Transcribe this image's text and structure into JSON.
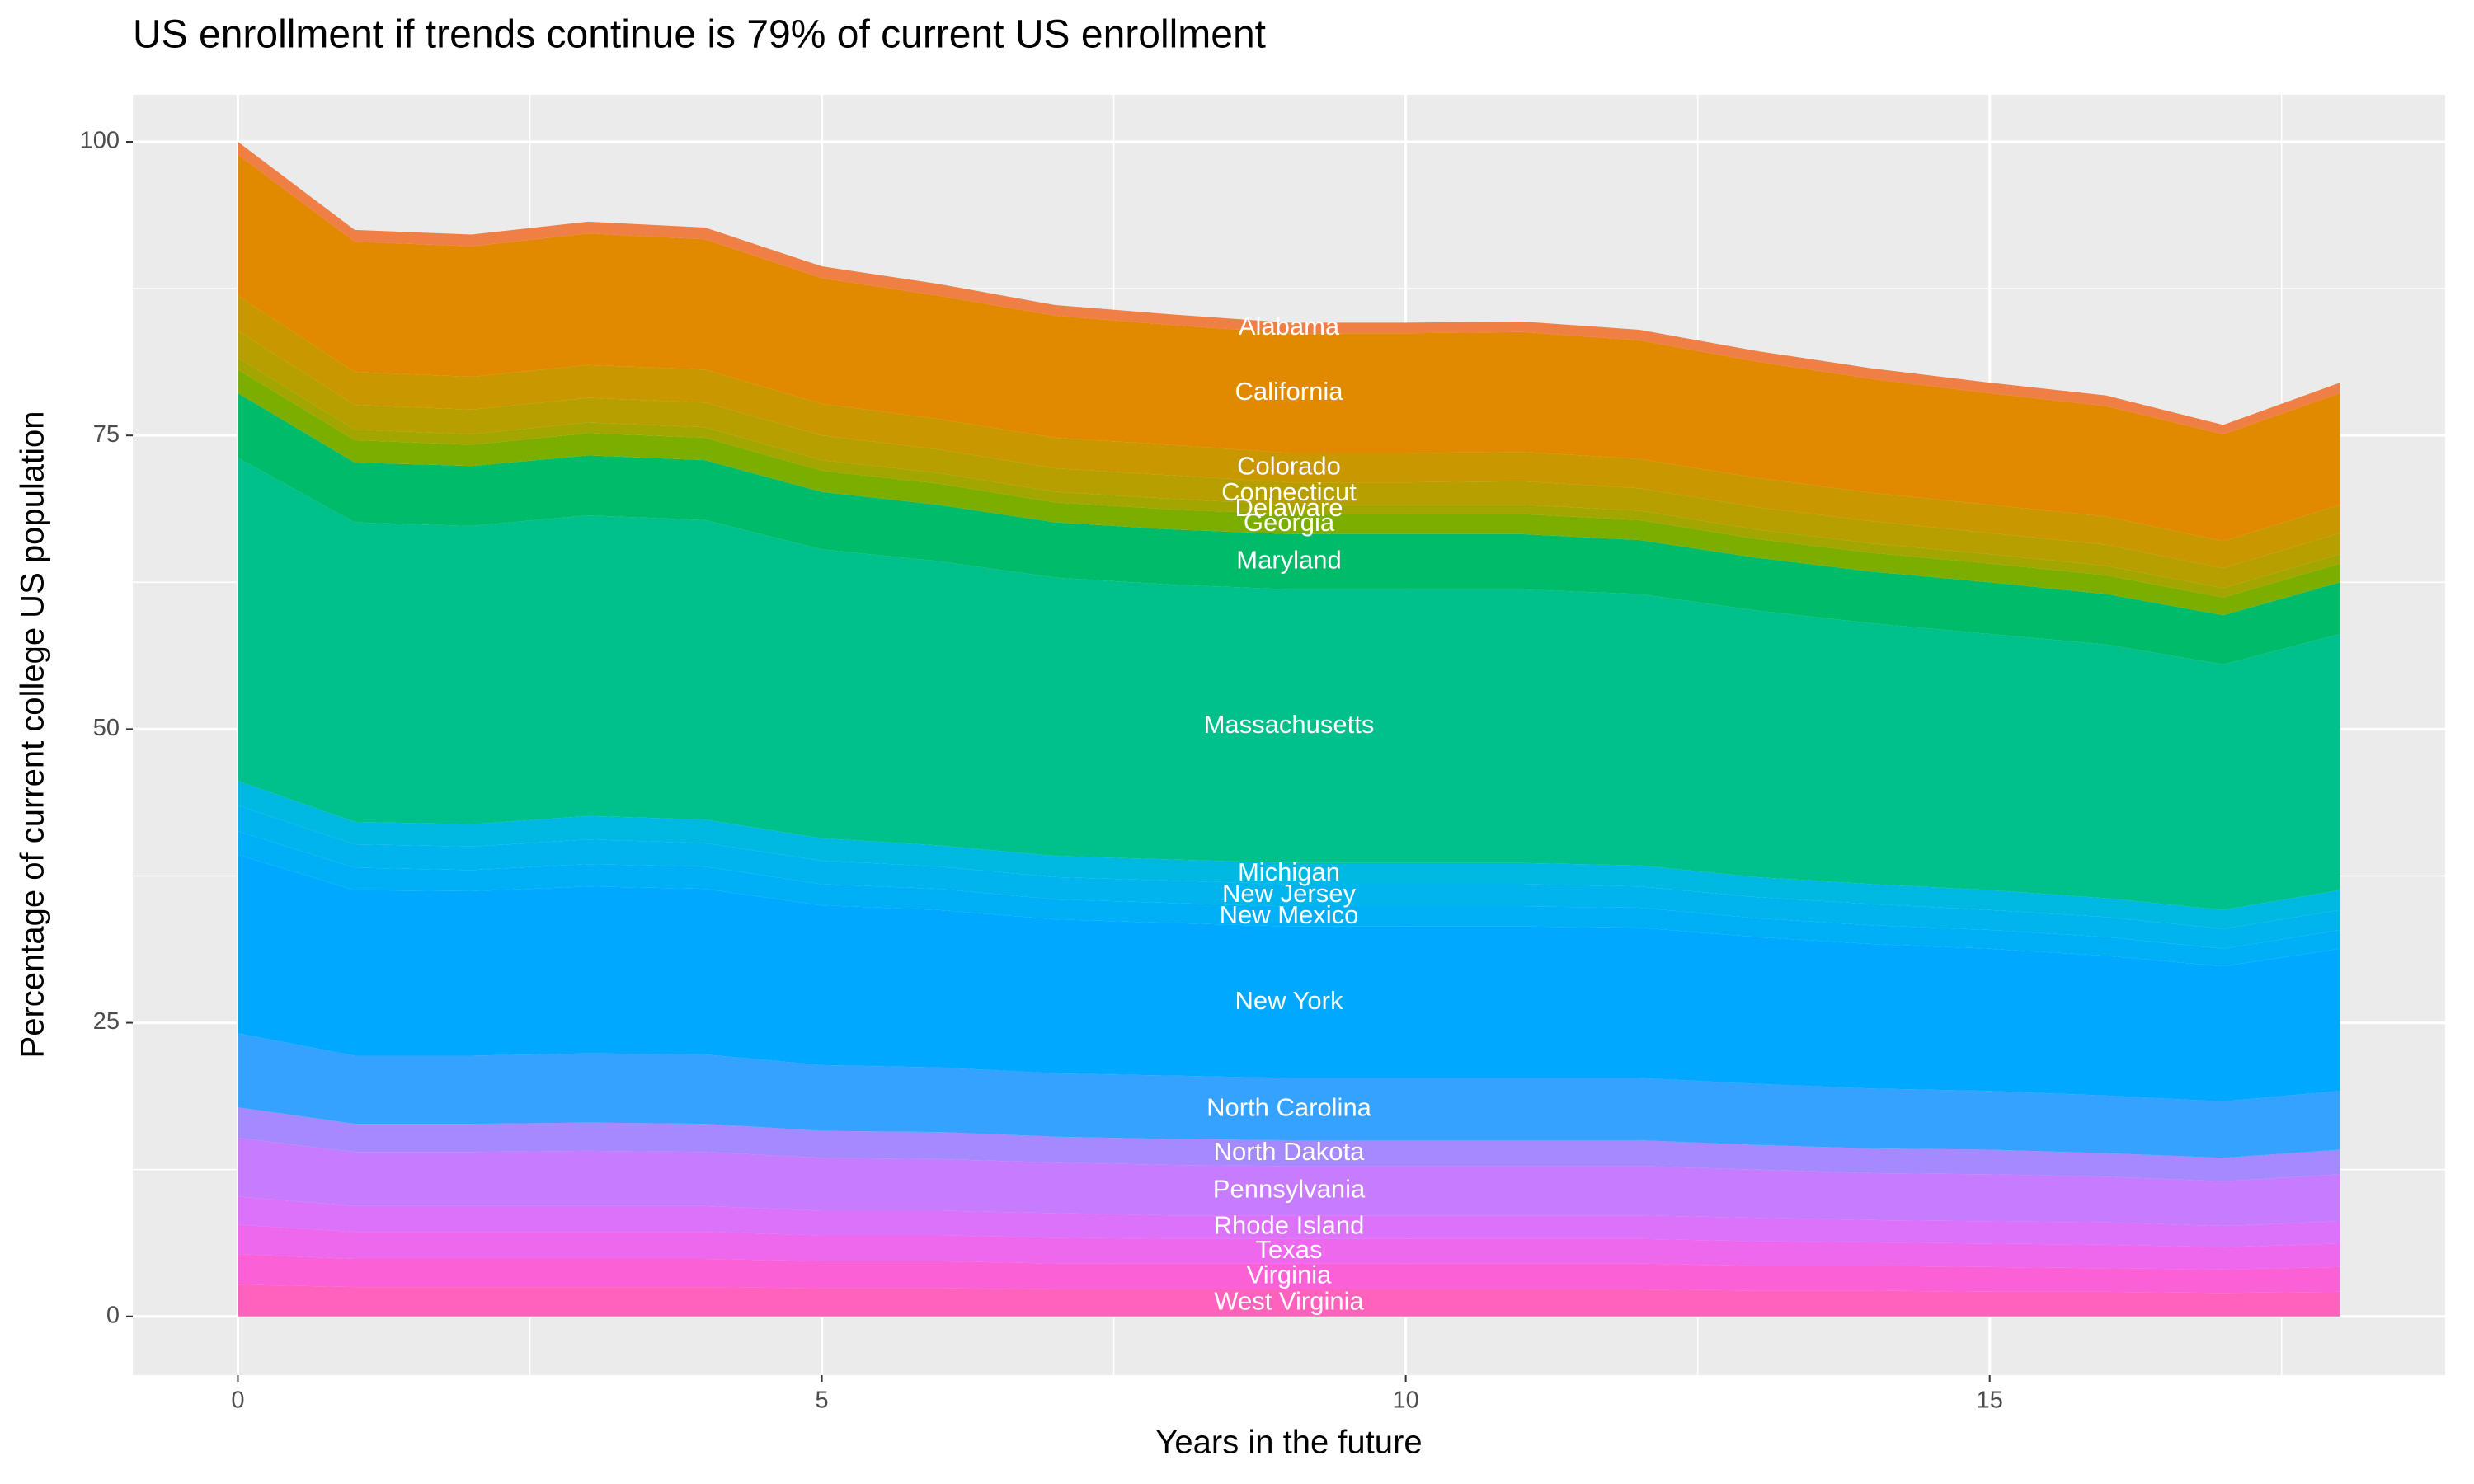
{
  "chart_data": {
    "type": "stacked_area",
    "title": "US enrollment if trends continue is 79% of current US enrollment",
    "x_label": "Years in the future",
    "y_label": "Percentage of current college US population",
    "x": [
      0,
      1,
      2,
      3,
      4,
      5,
      6,
      7,
      8,
      9,
      10,
      11,
      12,
      13,
      14,
      15,
      16,
      17,
      18
    ],
    "xlim": [
      -0.9,
      18.9
    ],
    "xticks": [
      0,
      5,
      10,
      15
    ],
    "x_minor_ticks": [
      2.5,
      7.5,
      12.5,
      17.5
    ],
    "ylim": [
      -5,
      104
    ],
    "yticks": [
      0,
      25,
      50,
      75,
      100
    ],
    "y_minor_ticks": [
      12.5,
      37.5,
      62.5,
      87.5
    ],
    "grid": true,
    "label_x": 9,
    "series": [
      {
        "name": "West Virginia",
        "color": "#ff62bc",
        "values": [
          2.7,
          2.5,
          2.5,
          2.5,
          2.5,
          2.4,
          2.4,
          2.3,
          2.3,
          2.3,
          2.3,
          2.3,
          2.3,
          2.2,
          2.2,
          2.1,
          2.1,
          2.0,
          2.1
        ]
      },
      {
        "name": "Virginia",
        "color": "#fb61d7",
        "values": [
          2.6,
          2.4,
          2.4,
          2.4,
          2.4,
          2.3,
          2.3,
          2.2,
          2.2,
          2.2,
          2.2,
          2.2,
          2.2,
          2.1,
          2.1,
          2.1,
          2.0,
          2.0,
          2.1
        ]
      },
      {
        "name": "Texas",
        "color": "#ed68ed",
        "values": [
          2.5,
          2.3,
          2.3,
          2.3,
          2.3,
          2.2,
          2.2,
          2.2,
          2.1,
          2.1,
          2.1,
          2.1,
          2.1,
          2.1,
          2.0,
          2.0,
          2.0,
          1.9,
          2.0
        ]
      },
      {
        "name": "Rhode Island",
        "color": "#dc71fa",
        "values": [
          2.4,
          2.2,
          2.2,
          2.2,
          2.2,
          2.1,
          2.1,
          2.1,
          2.0,
          2.0,
          2.0,
          2.0,
          2.0,
          2.0,
          1.9,
          1.9,
          1.9,
          1.8,
          1.9
        ]
      },
      {
        "name": "Pennsylvania",
        "color": "#c77cff",
        "values": [
          5.0,
          4.6,
          4.6,
          4.7,
          4.6,
          4.5,
          4.4,
          4.3,
          4.3,
          4.2,
          4.2,
          4.2,
          4.2,
          4.1,
          4.0,
          4.0,
          3.9,
          3.8,
          4.0
        ]
      },
      {
        "name": "North Dakota",
        "color": "#a58aff",
        "values": [
          2.6,
          2.4,
          2.4,
          2.4,
          2.4,
          2.3,
          2.3,
          2.2,
          2.2,
          2.2,
          2.2,
          2.2,
          2.2,
          2.1,
          2.1,
          2.1,
          2.0,
          2.0,
          2.1
        ]
      },
      {
        "name": "North Carolina",
        "color": "#35a2ff",
        "values": [
          6.3,
          5.8,
          5.8,
          5.9,
          5.9,
          5.6,
          5.5,
          5.4,
          5.4,
          5.3,
          5.3,
          5.3,
          5.3,
          5.2,
          5.1,
          5.0,
          4.9,
          4.8,
          5.0
        ]
      },
      {
        "name": "New York",
        "color": "#00a9ff",
        "values": [
          15.2,
          14.1,
          14.0,
          14.2,
          14.1,
          13.6,
          13.4,
          13.1,
          13.0,
          12.9,
          12.9,
          12.9,
          12.8,
          12.5,
          12.3,
          12.1,
          11.9,
          11.5,
          12.1
        ]
      },
      {
        "name": "New Mexico",
        "color": "#00b0f6",
        "values": [
          2.0,
          1.9,
          1.8,
          1.9,
          1.9,
          1.8,
          1.8,
          1.7,
          1.7,
          1.7,
          1.7,
          1.7,
          1.7,
          1.6,
          1.6,
          1.6,
          1.6,
          1.5,
          1.6
        ]
      },
      {
        "name": "New Jersey",
        "color": "#00b5ee",
        "values": [
          2.2,
          2.0,
          2.0,
          2.1,
          2.0,
          2.0,
          1.9,
          1.9,
          1.9,
          1.9,
          1.9,
          1.9,
          1.8,
          1.8,
          1.8,
          1.7,
          1.7,
          1.7,
          1.7
        ]
      },
      {
        "name": "Michigan",
        "color": "#00b9e3",
        "values": [
          2.1,
          1.9,
          1.9,
          2.0,
          2.0,
          1.9,
          1.8,
          1.8,
          1.8,
          1.8,
          1.8,
          1.8,
          1.8,
          1.7,
          1.7,
          1.7,
          1.6,
          1.6,
          1.7
        ]
      },
      {
        "name": "Massachusetts",
        "color": "#00c08b",
        "values": [
          27.5,
          25.5,
          25.4,
          25.6,
          25.5,
          24.6,
          24.2,
          23.7,
          23.4,
          23.3,
          23.3,
          23.3,
          23.1,
          22.7,
          22.2,
          21.8,
          21.6,
          20.9,
          21.8
        ]
      },
      {
        "name": "Maryland",
        "color": "#00bc6a",
        "values": [
          5.5,
          5.1,
          5.1,
          5.1,
          5.1,
          4.9,
          4.8,
          4.7,
          4.7,
          4.7,
          4.7,
          4.7,
          4.6,
          4.5,
          4.4,
          4.4,
          4.3,
          4.2,
          4.4
        ]
      },
      {
        "name": "Georgia",
        "color": "#7cae00",
        "values": [
          2.0,
          1.9,
          1.8,
          1.9,
          1.9,
          1.8,
          1.8,
          1.7,
          1.7,
          1.7,
          1.7,
          1.7,
          1.7,
          1.6,
          1.6,
          1.6,
          1.6,
          1.5,
          1.6
        ]
      },
      {
        "name": "Delaware",
        "color": "#a3a500",
        "values": [
          1.0,
          0.9,
          0.9,
          0.9,
          0.9,
          0.9,
          0.9,
          0.9,
          0.9,
          0.8,
          0.8,
          0.8,
          0.8,
          0.8,
          0.8,
          0.8,
          0.8,
          0.8,
          0.8
        ]
      },
      {
        "name": "Connecticut",
        "color": "#b79f00",
        "values": [
          2.3,
          2.1,
          2.1,
          2.1,
          2.1,
          2.1,
          2.0,
          2.0,
          2.0,
          1.9,
          1.9,
          2.0,
          1.9,
          1.9,
          1.9,
          1.8,
          1.8,
          1.7,
          1.8
        ]
      },
      {
        "name": "Colorado",
        "color": "#c99800",
        "values": [
          3.0,
          2.8,
          2.8,
          2.8,
          2.8,
          2.7,
          2.6,
          2.6,
          2.6,
          2.5,
          2.5,
          2.5,
          2.5,
          2.5,
          2.4,
          2.4,
          2.4,
          2.3,
          2.4
        ]
      },
      {
        "name": "California",
        "color": "#e18a00",
        "values": [
          12.0,
          11.1,
          11.1,
          11.2,
          11.1,
          10.7,
          10.5,
          10.4,
          10.2,
          10.2,
          10.2,
          10.2,
          10.1,
          9.9,
          9.7,
          9.5,
          9.4,
          9.1,
          9.5
        ]
      },
      {
        "name": "Alabama",
        "color": "#ef7f45",
        "values": [
          1.1,
          1.0,
          1.0,
          1.0,
          1.0,
          1.0,
          1.0,
          0.9,
          0.9,
          0.9,
          0.9,
          0.9,
          0.9,
          0.9,
          0.9,
          0.9,
          0.9,
          0.8,
          0.9
        ]
      }
    ]
  }
}
